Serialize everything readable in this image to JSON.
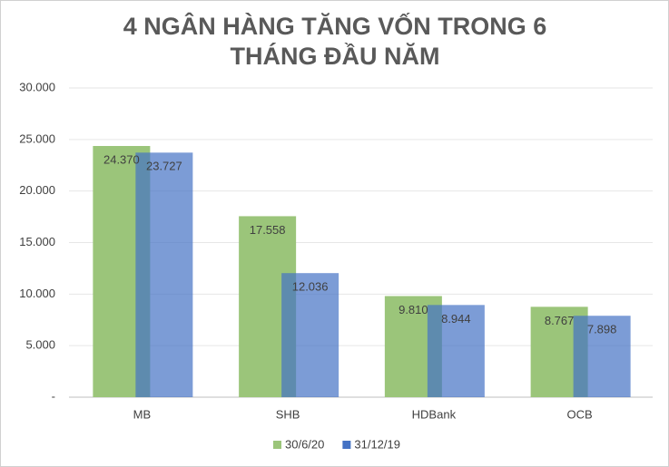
{
  "chart_data": {
    "type": "bar",
    "title": "4 NGÂN HÀNG TĂNG VỐN TRONG 6 THÁNG ĐẦU NĂM",
    "categories": [
      "MB",
      "SHB",
      "HDBank",
      "OCB"
    ],
    "series": [
      {
        "name": "30/6/20",
        "color": "#9bc57a",
        "values": [
          24370,
          17558,
          9810,
          8767
        ],
        "value_labels": [
          "24.370",
          "17.558",
          "9.810",
          "8.767"
        ]
      },
      {
        "name": "31/12/19",
        "color": "#4472c4",
        "values": [
          23727,
          12036,
          8944,
          7898
        ],
        "value_labels": [
          "23.727",
          "12.036",
          "8.944",
          "7.898"
        ]
      }
    ],
    "ylim": [
      0,
      30000
    ],
    "yticks": [
      {
        "value": 0,
        "label": "-"
      },
      {
        "value": 5000,
        "label": "5.000"
      },
      {
        "value": 10000,
        "label": "10.000"
      },
      {
        "value": 15000,
        "label": "15.000"
      },
      {
        "value": 20000,
        "label": "20.000"
      },
      {
        "value": 25000,
        "label": "25.000"
      },
      {
        "value": 30000,
        "label": "30.000"
      }
    ],
    "grid": true,
    "legend": "bottom"
  }
}
